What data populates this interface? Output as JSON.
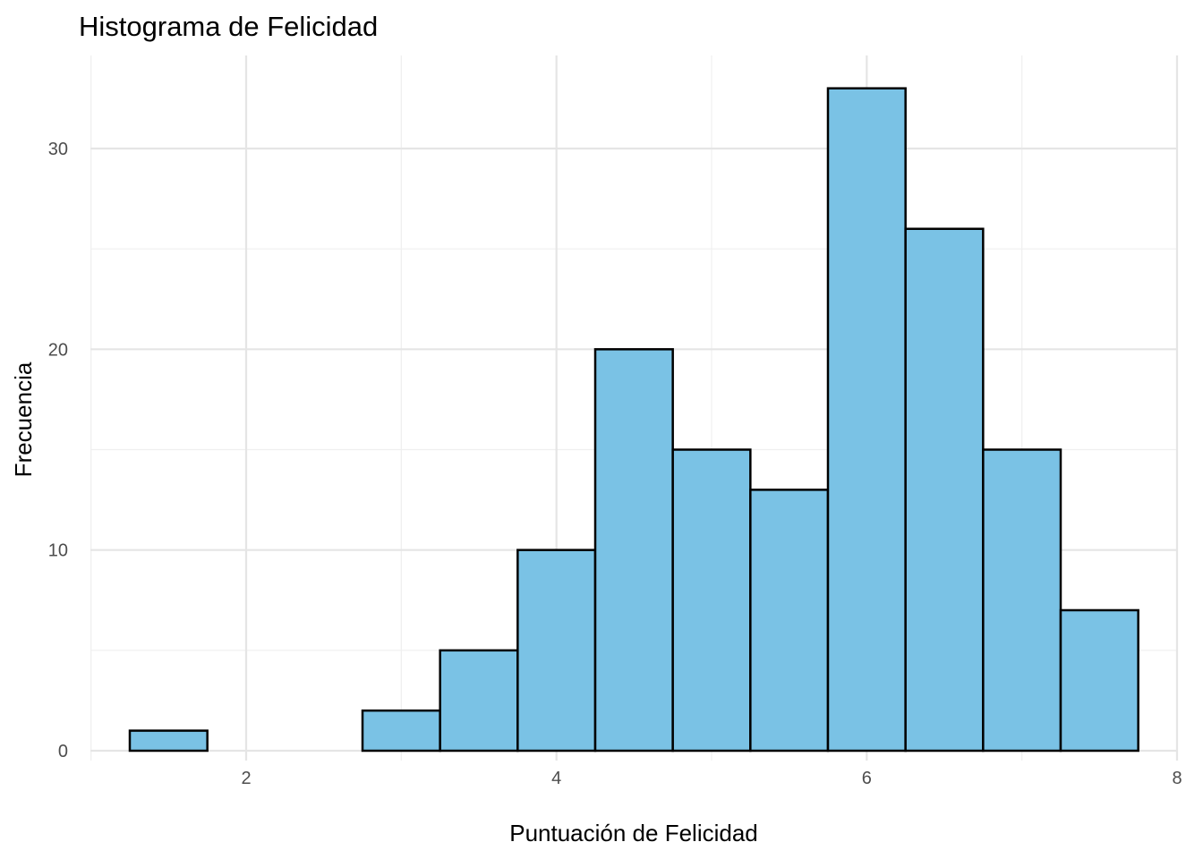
{
  "chart_data": {
    "type": "bar",
    "subtype": "histogram",
    "title": "Histograma de Felicidad",
    "xlabel": "Puntuación de Felicidad",
    "ylabel": "Frecuencia",
    "xlim": [
      1,
      8
    ],
    "ylim": [
      0,
      33
    ],
    "x_ticks": [
      2,
      4,
      6,
      8
    ],
    "y_ticks": [
      0,
      10,
      20,
      30
    ],
    "bin_width": 0.5,
    "bins": [
      {
        "x0": 1.25,
        "x1": 1.75,
        "count": 1
      },
      {
        "x0": 1.75,
        "x1": 2.25,
        "count": 0
      },
      {
        "x0": 2.25,
        "x1": 2.75,
        "count": 0
      },
      {
        "x0": 2.75,
        "x1": 3.25,
        "count": 2
      },
      {
        "x0": 3.25,
        "x1": 3.75,
        "count": 5
      },
      {
        "x0": 3.75,
        "x1": 4.25,
        "count": 10
      },
      {
        "x0": 4.25,
        "x1": 4.75,
        "count": 20
      },
      {
        "x0": 4.75,
        "x1": 5.25,
        "count": 15
      },
      {
        "x0": 5.25,
        "x1": 5.75,
        "count": 13
      },
      {
        "x0": 5.75,
        "x1": 6.25,
        "count": 33
      },
      {
        "x0": 6.25,
        "x1": 6.75,
        "count": 26
      },
      {
        "x0": 6.75,
        "x1": 7.25,
        "count": 15
      },
      {
        "x0": 7.25,
        "x1": 7.75,
        "count": 7
      }
    ],
    "grid": true,
    "colors": {
      "bar_fill": "#7ac2e5",
      "bar_stroke": "#000000",
      "grid": "#e5e5e5",
      "background": "#ffffff"
    }
  }
}
